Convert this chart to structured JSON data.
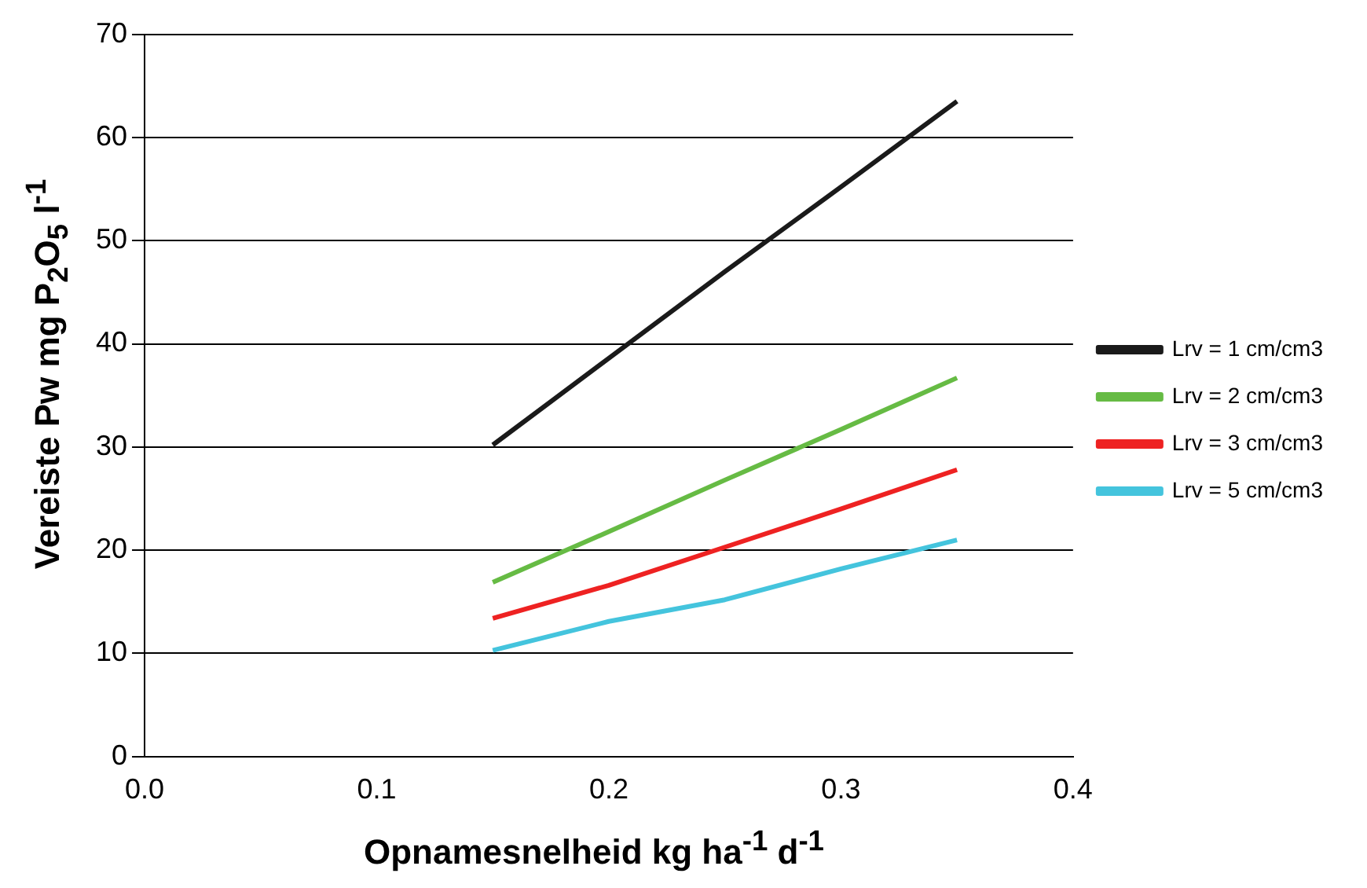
{
  "chart_data": {
    "type": "line",
    "xlabel": "Opnamesnelheid kg ha$^{-1}$ d$^{-1}$",
    "ylabel": "Vereiste Pw mg P$_{2}$O$_{5}$ l$^{-1}$",
    "x": [
      0.15,
      0.2,
      0.25,
      0.3,
      0.35
    ],
    "series": [
      {
        "name": "Lrv = 1 cm/cm3",
        "color": "#1a1a1a",
        "values": [
          30.2,
          38.6,
          47.0,
          55.2,
          63.5
        ]
      },
      {
        "name": "Lrv = 2 cm/cm3",
        "color": "#66bb44",
        "values": [
          16.9,
          21.8,
          26.8,
          31.7,
          36.7
        ]
      },
      {
        "name": "Lrv = 3 cm/cm3",
        "color": "#ee2222",
        "values": [
          13.4,
          16.6,
          20.3,
          24.0,
          27.8
        ]
      },
      {
        "name": "Lrv = 5 cm/cm3",
        "color": "#44c4dd",
        "values": [
          10.3,
          13.1,
          15.2,
          18.2,
          21.0
        ]
      }
    ],
    "xlim": [
      0,
      0.4
    ],
    "xticks": [
      {
        "value": 0,
        "label": "0.0"
      },
      0.1,
      0.2,
      0.3,
      0.4
    ],
    "ylim": [
      0,
      70
    ],
    "yticks": [
      0,
      10,
      20,
      30,
      40,
      50,
      60,
      70
    ],
    "grid": "y",
    "legend": "right",
    "marker": "none",
    "line_style": "solid"
  }
}
